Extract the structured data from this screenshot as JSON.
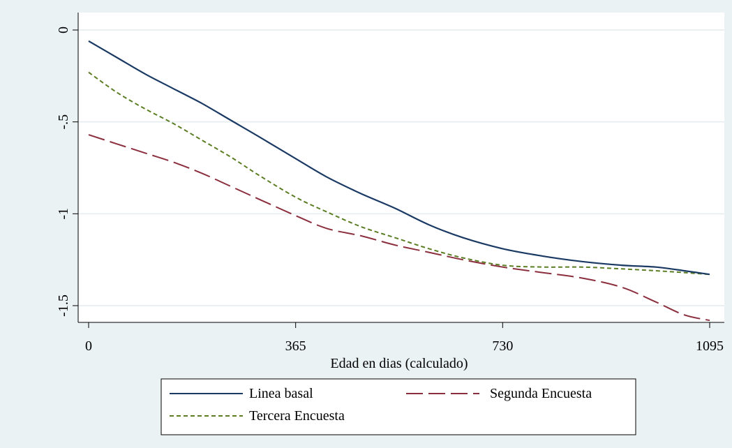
{
  "chart_data": {
    "type": "line",
    "title": "",
    "xlabel": "Edad en dias (calculado)",
    "ylabel": "",
    "xlim": [
      0,
      1095
    ],
    "ylim": [
      -1.5,
      0
    ],
    "xticks": [
      0,
      365,
      730,
      1095
    ],
    "xtick_labels": [
      "0",
      "365",
      "730",
      "1095"
    ],
    "yticks": [
      0,
      -0.5,
      -1,
      -1.5
    ],
    "ytick_labels": [
      "0",
      "-.5",
      "-1",
      "-1.5"
    ],
    "grid": true,
    "legend_position": "bottom",
    "series": [
      {
        "name": "Linea basal",
        "color": "#1a3a64",
        "dash": "solid",
        "x": [
          0,
          50,
          100,
          150,
          200,
          250,
          300,
          365,
          420,
          480,
          540,
          600,
          660,
          730,
          800,
          870,
          940,
          1000,
          1050,
          1095
        ],
        "y": [
          -0.06,
          -0.15,
          -0.24,
          -0.32,
          -0.4,
          -0.49,
          -0.58,
          -0.7,
          -0.8,
          -0.89,
          -0.97,
          -1.06,
          -1.13,
          -1.19,
          -1.23,
          -1.26,
          -1.28,
          -1.29,
          -1.31,
          -1.33
        ]
      },
      {
        "name": "Segunda Encuesta",
        "color": "#8b2f3e",
        "dash": "long",
        "x": [
          0,
          50,
          100,
          150,
          200,
          250,
          300,
          365,
          420,
          480,
          540,
          600,
          660,
          730,
          800,
          870,
          940,
          1000,
          1050,
          1095
        ],
        "y": [
          -0.57,
          -0.62,
          -0.67,
          -0.72,
          -0.78,
          -0.85,
          -0.92,
          -1.01,
          -1.08,
          -1.12,
          -1.17,
          -1.21,
          -1.25,
          -1.29,
          -1.32,
          -1.35,
          -1.4,
          -1.48,
          -1.55,
          -1.58
        ]
      },
      {
        "name": "Tercera Encuesta",
        "color": "#5b7d24",
        "dash": "short",
        "x": [
          0,
          50,
          100,
          150,
          200,
          250,
          300,
          365,
          420,
          480,
          540,
          600,
          660,
          730,
          800,
          870,
          940,
          1000,
          1050,
          1095
        ],
        "y": [
          -0.23,
          -0.34,
          -0.43,
          -0.51,
          -0.6,
          -0.69,
          -0.79,
          -0.91,
          -0.99,
          -1.07,
          -1.13,
          -1.19,
          -1.24,
          -1.28,
          -1.29,
          -1.29,
          -1.3,
          -1.31,
          -1.32,
          -1.33
        ]
      }
    ]
  }
}
